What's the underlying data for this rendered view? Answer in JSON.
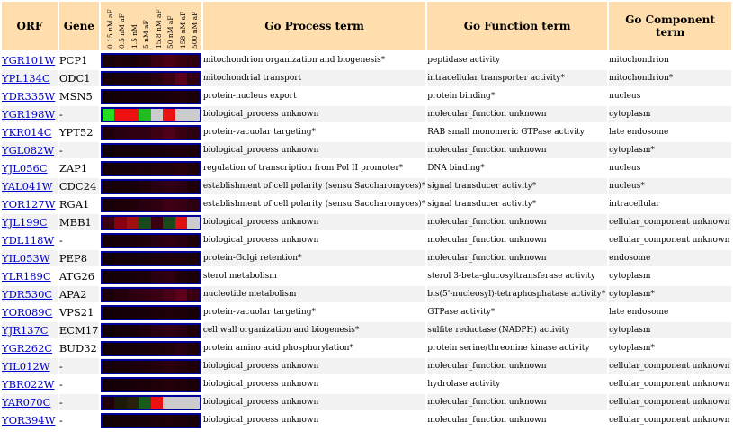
{
  "headers": {
    "orf": "ORF",
    "gene": "Gene",
    "process": "Go Process term",
    "function": "Go Function term",
    "component": "Go Component term",
    "concentrations": [
      "0.15 nM aF",
      "0.5 nM aF",
      "1.5 nM",
      "5 nM aF",
      "15.8 nM aF",
      "50 nM aF",
      "158 nM aF",
      "500 nM aF"
    ]
  },
  "colors": {
    "header_bg": "#ffdead",
    "link": "#0000cc",
    "heatmap_border": "#0000a0"
  },
  "rows": [
    {
      "orf": "YGR101W",
      "gene": "PCP1",
      "process": "mitochondrion organization and biogenesis*",
      "function": "peptidase activity",
      "component": "mitochondrion",
      "heat": [
        "#1a0008",
        "#200008",
        "#1a0008",
        "#240008",
        "#3a0010",
        "#4a0012",
        "#3a0010",
        "#300010"
      ]
    },
    {
      "orf": "YPL134C",
      "gene": "ODC1",
      "process": "mitochondrial transport",
      "function": "intracellular transporter activity*",
      "component": "mitochondrion*",
      "heat": [
        "#150006",
        "#180008",
        "#1c0008",
        "#200008",
        "#2a000c",
        "#3a0010",
        "#5a0018",
        "#300010"
      ]
    },
    {
      "orf": "YDR335W",
      "gene": "MSN5",
      "process": "protein-nucleus export",
      "function": "protein binding*",
      "component": "nucleus",
      "heat": [
        "#100004",
        "#120006",
        "#140006",
        "#140006",
        "#180008",
        "#1c0008",
        "#200008",
        "#1c0008"
      ]
    },
    {
      "orf": "YGR198W",
      "gene": "-",
      "process": "biological_process unknown",
      "function": "molecular_function unknown",
      "component": "cytoplasm",
      "heat": [
        "#22dd22",
        "#ee1111",
        "#ee1111",
        "#22bb22",
        "#cccccc",
        "#ee1111",
        "#cccccc",
        "#cccccc"
      ]
    },
    {
      "orf": "YKR014C",
      "gene": "YPT52",
      "process": "protein-vacuolar targeting*",
      "function": "RAB small monomeric GTPase activity",
      "component": "late endosome",
      "heat": [
        "#200008",
        "#280010",
        "#300012",
        "#300012",
        "#400014",
        "#500018",
        "#3a0012",
        "#2c0010"
      ]
    },
    {
      "orf": "YGL082W",
      "gene": "-",
      "process": "biological_process unknown",
      "function": "molecular_function unknown",
      "component": "cytoplasm*",
      "heat": [
        "#100006",
        "#120006",
        "#140006",
        "#160006",
        "#180008",
        "#1c0008",
        "#200008",
        "#1c0008"
      ]
    },
    {
      "orf": "YJL056C",
      "gene": "ZAP1",
      "process": "regulation of transcription from Pol II promoter*",
      "function": "DNA binding*",
      "component": "nucleus",
      "heat": [
        "#120006",
        "#140006",
        "#180008",
        "#1c0008",
        "#200008",
        "#220008",
        "#280008",
        "#200008"
      ]
    },
    {
      "orf": "YAL041W",
      "gene": "CDC24",
      "process": "establishment of cell polarity (sensu Saccharomyces)*",
      "function": "signal transducer activity*",
      "component": "nucleus*",
      "heat": [
        "#140006",
        "#160006",
        "#180008",
        "#200008",
        "#280010",
        "#300010",
        "#280010",
        "#200008"
      ]
    },
    {
      "orf": "YOR127W",
      "gene": "RGA1",
      "process": "establishment of cell polarity (sensu Saccharomyces)*",
      "function": "signal transducer activity*",
      "component": "intracellular",
      "heat": [
        "#180008",
        "#1c0008",
        "#200008",
        "#280010",
        "#300010",
        "#400014",
        "#380012",
        "#2c0010"
      ]
    },
    {
      "orf": "YJL199C",
      "gene": "MBB1",
      "process": "biological_process unknown",
      "function": "molecular_function unknown",
      "component": "cellular_component unknown",
      "heat": [
        "#3a0010",
        "#8a0010",
        "#a01010",
        "#1a4a1a",
        "#3a0010",
        "#1a4a1a",
        "#dd1111",
        "#cccccc"
      ]
    },
    {
      "orf": "YDL118W",
      "gene": "-",
      "process": "biological_process unknown",
      "function": "molecular_function unknown",
      "component": "cellular_component unknown",
      "heat": [
        "#140006",
        "#180008",
        "#1c0008",
        "#200008",
        "#280010",
        "#300010",
        "#280010",
        "#200008"
      ]
    },
    {
      "orf": "YIL053W",
      "gene": "PEP8",
      "process": "protein-Golgi retention*",
      "function": "molecular_function unknown",
      "component": "endosome",
      "heat": [
        "#100004",
        "#120006",
        "#140006",
        "#180008",
        "#1c0008",
        "#200008",
        "#200008",
        "#1c0008"
      ]
    },
    {
      "orf": "YLR189C",
      "gene": "ATG26",
      "process": "sterol metabolism",
      "function": "sterol 3-beta-glucosyltransferase activity",
      "component": "cytoplasm",
      "heat": [
        "#120006",
        "#140006",
        "#180008",
        "#1c0008",
        "#280010",
        "#300010",
        "#200008",
        "#1c0008"
      ]
    },
    {
      "orf": "YDR530C",
      "gene": "APA2",
      "process": "nucleotide metabolism",
      "function": "bis(5'-nucleosyl)-tetraphosphatase activity*",
      "component": "cytoplasm*",
      "heat": [
        "#1c0008",
        "#240008",
        "#2c000c",
        "#300010",
        "#3a0012",
        "#4a0014",
        "#600018",
        "#3a0012"
      ]
    },
    {
      "orf": "YOR089C",
      "gene": "VPS21",
      "process": "protein-vacuolar targeting*",
      "function": "GTPase activity*",
      "component": "late endosome",
      "heat": [
        "#100004",
        "#120006",
        "#140006",
        "#180008",
        "#1c0008",
        "#200008",
        "#1c0008",
        "#180008"
      ]
    },
    {
      "orf": "YJR137C",
      "gene": "ECM17",
      "process": "cell wall organization and biogenesis*",
      "function": "sulfite reductase (NADPH) activity",
      "component": "cytoplasm",
      "heat": [
        "#100004",
        "#140006",
        "#180008",
        "#200008",
        "#280010",
        "#300010",
        "#280010",
        "#200008"
      ]
    },
    {
      "orf": "YGR262C",
      "gene": "BUD32",
      "process": "protein amino acid phosphorylation*",
      "function": "protein serine/threonine kinase activity",
      "component": "cytoplasm*",
      "heat": [
        "#100004",
        "#120006",
        "#140006",
        "#180008",
        "#1c0008",
        "#200008",
        "#280010",
        "#200008"
      ]
    },
    {
      "orf": "YIL012W",
      "gene": "-",
      "process": "biological_process unknown",
      "function": "molecular_function unknown",
      "component": "cellular_component unknown",
      "heat": [
        "#140006",
        "#180008",
        "#1c0008",
        "#200008",
        "#240008",
        "#2a000c",
        "#240008",
        "#200008"
      ]
    },
    {
      "orf": "YBR022W",
      "gene": "-",
      "process": "biological_process unknown",
      "function": "hydrolase activity",
      "component": "cellular_component unknown",
      "heat": [
        "#120006",
        "#140006",
        "#180008",
        "#1c0008",
        "#200008",
        "#240008",
        "#200008",
        "#1c0008"
      ]
    },
    {
      "orf": "YAR070C",
      "gene": "-",
      "process": "biological_process unknown",
      "function": "molecular_function unknown",
      "component": "cellular_component unknown",
      "heat": [
        "#200008",
        "#1a1a06",
        "#2a200a",
        "#1a5a1a",
        "#ee1111",
        "#cccccc",
        "#cccccc",
        "#cccccc"
      ]
    },
    {
      "orf": "YOR394W",
      "gene": "-",
      "process": "biological_process unknown",
      "function": "molecular_function unknown",
      "component": "cellular_component unknown",
      "heat": [
        "#100004",
        "#120006",
        "#140006",
        "#180008",
        "#1c0008",
        "#200008",
        "#1c0008",
        "#180008"
      ]
    }
  ]
}
